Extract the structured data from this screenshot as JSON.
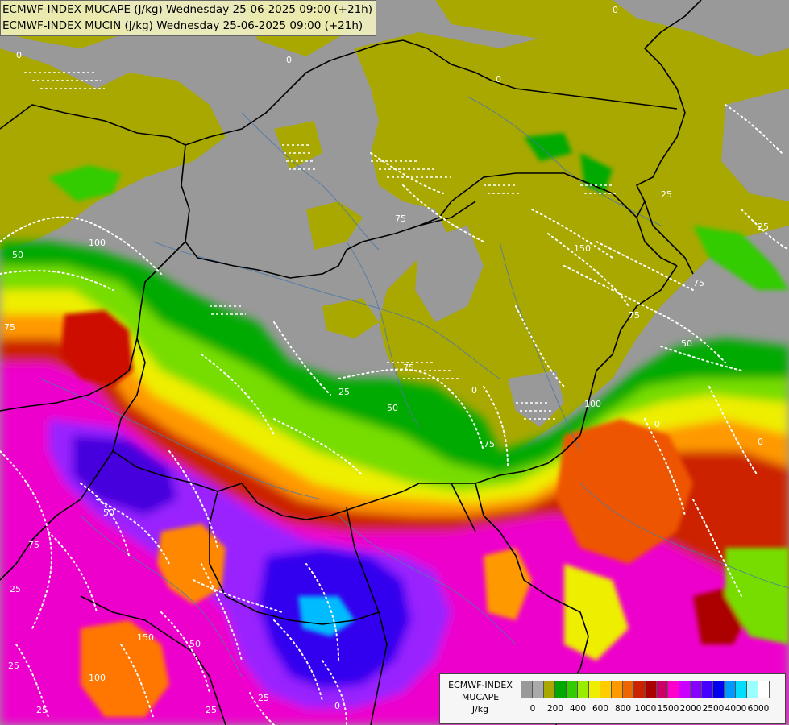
{
  "title": {
    "line1": "ECMWF-INDEX MUCAPE (J/kg) Wednesday 25-06-2025 09:00 (+21h)",
    "line2": "ECMWF-INDEX MUCIN (J/kg) Wednesday 25-06-2025 09:00 (+21h)"
  },
  "legend": {
    "model": "ECMWF-INDEX",
    "parameter": "MUCAPE",
    "unit": "J/kg",
    "colors": [
      "#999999",
      "#aaaaaa",
      "#a8a800",
      "#00aa00",
      "#33cc00",
      "#99ee00",
      "#eeee00",
      "#ffcc00",
      "#ff9900",
      "#ee6600",
      "#cc2200",
      "#aa0000",
      "#cc0066",
      "#ff00cc",
      "#cc00ff",
      "#8800ff",
      "#4400ff",
      "#0000ee",
      "#0099ff",
      "#00ddff",
      "#99ffff",
      "#ffffff"
    ],
    "ticks": [
      "0",
      "200",
      "400",
      "600",
      "800",
      "1000",
      "1500",
      "2000",
      "2500",
      "4000",
      "6000"
    ]
  },
  "contour_labels": [
    "0",
    "0",
    "0",
    "0",
    "0",
    "0",
    "0",
    "0",
    "25",
    "25",
    "25",
    "25",
    "25",
    "25",
    "25",
    "25",
    "50",
    "50",
    "50",
    "50",
    "50",
    "75",
    "75",
    "75",
    "75",
    "75",
    "75",
    "75",
    "100",
    "100",
    "100",
    "150",
    "150"
  ]
}
